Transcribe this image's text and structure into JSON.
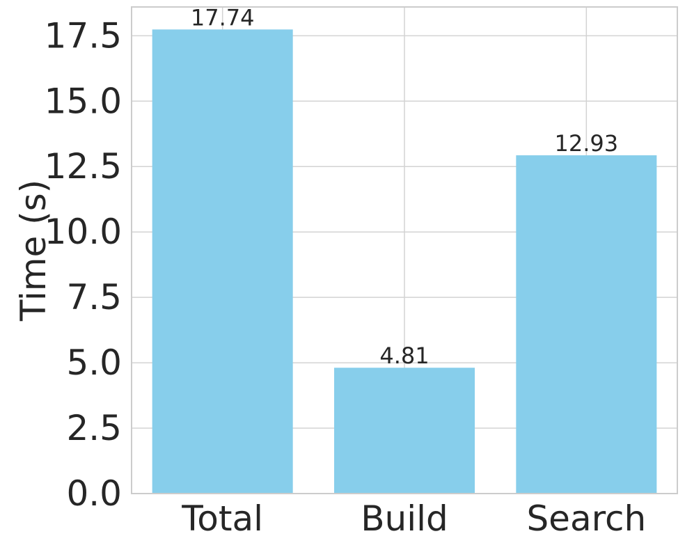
{
  "chart_data": {
    "type": "bar",
    "categories": [
      "Total",
      "Build",
      "Search"
    ],
    "values": [
      17.74,
      4.81,
      12.93
    ],
    "data_labels": [
      "17.74",
      "4.81",
      "12.93"
    ],
    "ylabel": "Time (s)",
    "xlabel": "",
    "title": "",
    "ylim": [
      0,
      18.6
    ],
    "yticks": [
      0.0,
      2.5,
      5.0,
      7.5,
      10.0,
      12.5,
      15.0,
      17.5
    ],
    "ytick_labels": [
      "0.0",
      "2.5",
      "5.0",
      "7.5",
      "10.0",
      "12.5",
      "15.0",
      "17.5"
    ],
    "grid": true,
    "colors": {
      "bar": "#87CEEB",
      "grid": "#d3d3d3",
      "axes_border": "#cccccc",
      "text": "#262626"
    }
  }
}
